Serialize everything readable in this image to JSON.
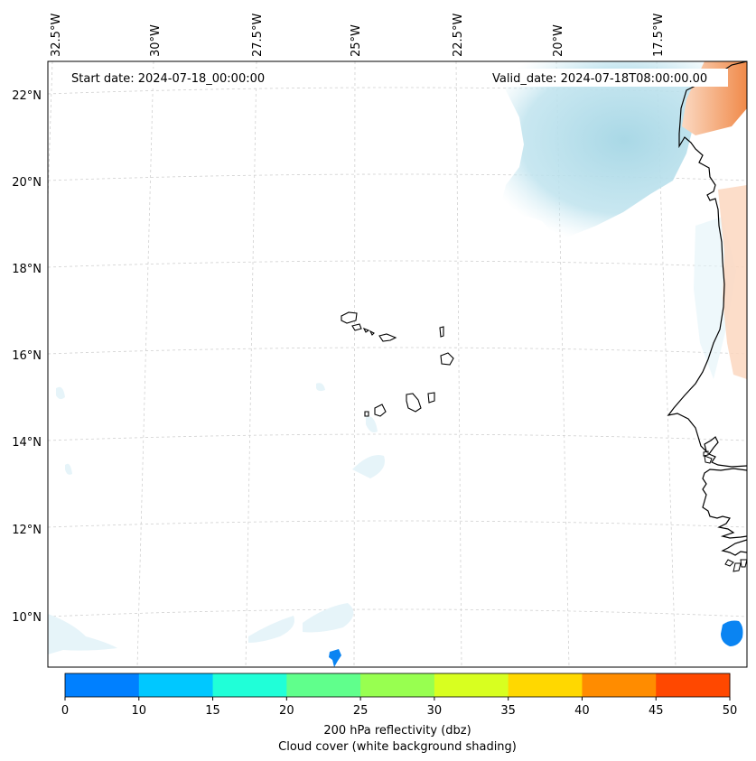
{
  "map": {
    "start_date_label": "Start date: 2024-07-18_00:00:00",
    "valid_date_label": "Valid_date: 2024-07-18T08:00:00.00",
    "lon_labels": [
      "32.5°W",
      "30°W",
      "27.5°W",
      "25°W",
      "22.5°W",
      "20°W",
      "17.5°W"
    ],
    "lat_labels": [
      "22°N",
      "20°N",
      "18°N",
      "16°N",
      "14°N",
      "12°N",
      "10°N"
    ],
    "gridlines": true
  },
  "colorbar": {
    "ticks": [
      "0",
      "10",
      "15",
      "20",
      "25",
      "30",
      "35",
      "40",
      "45",
      "50"
    ],
    "colors": [
      "#0080ff",
      "#00c8ff",
      "#20ffd8",
      "#60ff8c",
      "#98ff50",
      "#d8ff20",
      "#ffd800",
      "#ff8c00",
      "#ff4800"
    ],
    "label_line1": "200 hPa reflectivity (dbz)",
    "label_line2": "Cloud cover (white background shading)"
  },
  "shading_colors": {
    "cloud": "#a9d8e6",
    "warm": "#f5a46e",
    "reflectivity_low": "#0a84f2"
  }
}
